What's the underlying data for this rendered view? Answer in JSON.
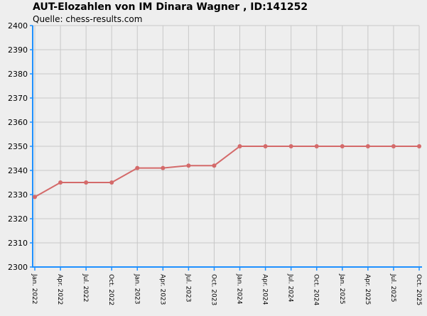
{
  "chart_data": {
    "type": "line",
    "title": "AUT-Elozahlen von IM Dinara Wagner , ID:141252",
    "subtitle": "Quelle: chess-results.com",
    "xlabel": "",
    "ylabel": "",
    "categories": [
      "Jan. 2022",
      "Apr. 2022",
      "Jul. 2022",
      "Oct. 2022",
      "Jan. 2023",
      "Apr. 2023",
      "Jul. 2023",
      "Oct. 2023",
      "Jan. 2024",
      "Apr. 2024",
      "Jul. 2024",
      "Oct. 2024",
      "Jan. 2025",
      "Apr. 2025",
      "Jul. 2025",
      "Oct. 2025"
    ],
    "series": [
      {
        "values": [
          2329,
          2335,
          2335,
          2335,
          2341,
          2341,
          2342,
          2342,
          2350,
          2350,
          2350,
          2350,
          2350,
          2350,
          2350,
          2350
        ]
      }
    ],
    "ylim": [
      2300,
      2400
    ],
    "yticks": [
      2300,
      2310,
      2320,
      2330,
      2340,
      2350,
      2360,
      2370,
      2380,
      2390,
      2400
    ],
    "grid": true,
    "line_color": "#d46a6a",
    "axis_color": "#1e90ff",
    "grid_color": "#c8c8c8",
    "background_color": "#eeeeee"
  }
}
